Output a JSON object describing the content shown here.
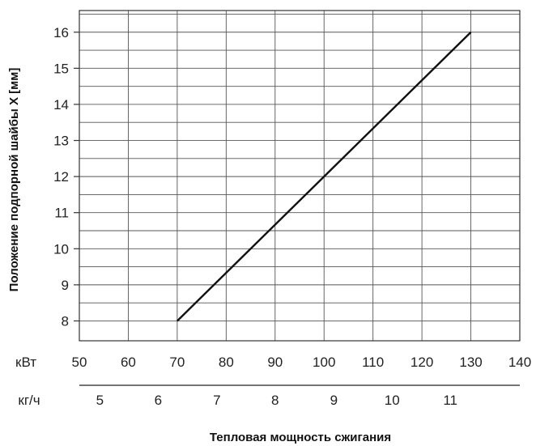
{
  "chart_data": {
    "type": "line",
    "title": "",
    "xlabel": "Тепловая мощность сжигания",
    "ylabel": "Положение подпорной шайбы X [мм]",
    "x_unit": "кВт",
    "x_ticks": [
      50,
      60,
      70,
      80,
      90,
      100,
      110,
      120,
      130,
      140
    ],
    "xlim": [
      50,
      140
    ],
    "y_ticks": [
      8,
      9,
      10,
      11,
      12,
      13,
      14,
      15,
      16
    ],
    "ylim": [
      7.45,
      16.6
    ],
    "grid": true,
    "series": [
      {
        "x": [
          70,
          130
        ],
        "y": [
          8,
          16
        ]
      }
    ],
    "secondary_axis": {
      "unit": "кг/ч",
      "ticks": [
        5,
        6,
        7,
        8,
        9,
        10,
        11
      ],
      "kw_positions": [
        54.2,
        66.1,
        78.1,
        90.0,
        102.0,
        113.9,
        125.8
      ]
    },
    "line_color": "#111111",
    "grid_color": "#555555"
  }
}
